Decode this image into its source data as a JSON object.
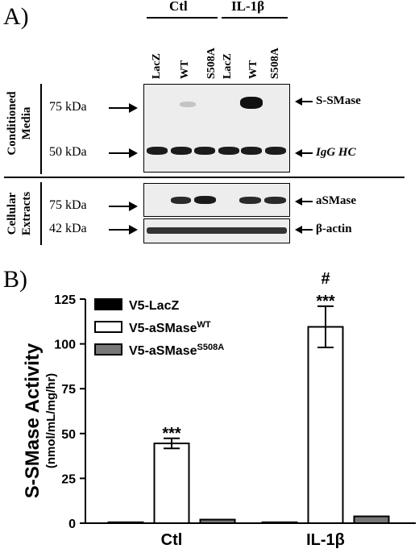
{
  "panel_a": {
    "letter": "A)",
    "conditions": [
      "Ctl",
      "IL-1β"
    ],
    "lanes": [
      "LacZ",
      "WT",
      "S508A",
      "LacZ",
      "WT",
      "S508A"
    ],
    "side_labels": {
      "conditioned_media": [
        "Conditioned",
        "Media"
      ],
      "cellular_extracts": [
        "Cellular",
        "Extracts"
      ]
    },
    "markers": [
      "75 kDa",
      "50 kDa",
      "75 kDa",
      "42 kDa"
    ],
    "band_labels": [
      "S-SMase",
      "IgG HC",
      "aSMase",
      "β-actin"
    ]
  },
  "panel_b": {
    "letter": "B)"
  },
  "chart_data": {
    "type": "bar",
    "categories": [
      "Ctl",
      "IL-1β"
    ],
    "ylabel": "S-SMase Activity",
    "ylabel_units": "(nmol/mL/mg/hr)",
    "ylim": [
      0,
      125
    ],
    "yticks": [
      0,
      25,
      50,
      75,
      100,
      125
    ],
    "legend_position": "top-left",
    "series": [
      {
        "name": "V5-LacZ",
        "values": [
          0.5,
          0.5
        ],
        "errors": [
          0.2,
          0.2
        ],
        "color": "#000000"
      },
      {
        "name": "V5-aSMase",
        "name_sup": "WT",
        "values": [
          44.5,
          109.5
        ],
        "errors": [
          2.8,
          11.5
        ],
        "color": "#ffffff"
      },
      {
        "name": "V5-aSMase",
        "name_sup": "S508A",
        "values": [
          2.0,
          3.8
        ],
        "errors": [
          0.4,
          0.6
        ],
        "color": "#777777"
      }
    ],
    "annotations": [
      {
        "category": 0,
        "series": 1,
        "lines": [
          "***"
        ]
      },
      {
        "category": 1,
        "series": 1,
        "lines": [
          "#",
          "***"
        ]
      }
    ]
  }
}
